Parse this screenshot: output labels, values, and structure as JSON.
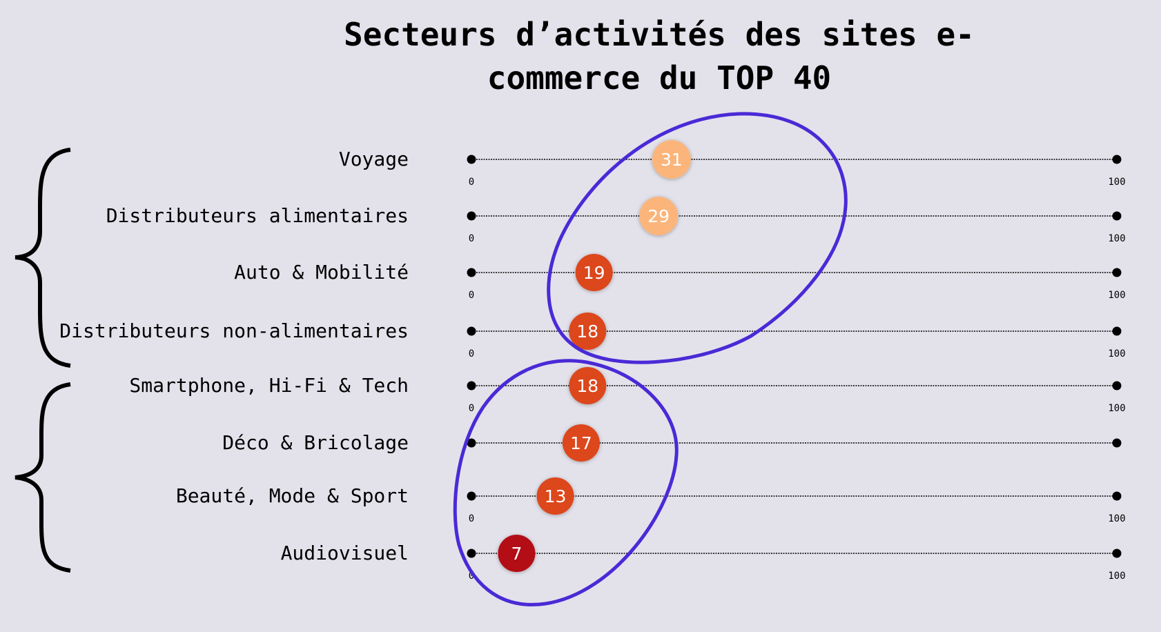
{
  "chart_data": {
    "type": "scatter",
    "title_lines": [
      "Secteurs d’activités des sites e-",
      "commerce du TOP 40"
    ],
    "xlim": [
      0,
      100
    ],
    "categories": [
      "Voyage",
      "Distributeurs alimentaires",
      "Auto & Mobilité",
      "Distributeurs non-alimentaires",
      "Smartphone, Hi-Fi & Tech",
      "Déco & Bricolage",
      "Beauté, Mode & Sport",
      "Audiovisuel"
    ],
    "values": [
      31,
      29,
      19,
      18,
      18,
      17,
      13,
      7
    ],
    "value_labels": [
      "31",
      "29",
      "19",
      "18",
      "18",
      "17",
      "13",
      "7"
    ],
    "show_ticks": [
      true,
      true,
      true,
      true,
      true,
      false,
      true,
      true
    ],
    "tick_min_label": "0",
    "tick_max_label": "100",
    "groups": [
      {
        "name": "group-1",
        "rows": [
          0,
          3
        ]
      },
      {
        "name": "group-2",
        "rows": [
          4,
          7
        ]
      }
    ]
  },
  "colors": {
    "background": "#e3e2eb",
    "high": "#fbb57a",
    "mid": "#dc461b",
    "low": "#b30a14",
    "annotation": "#4a2ad6"
  }
}
